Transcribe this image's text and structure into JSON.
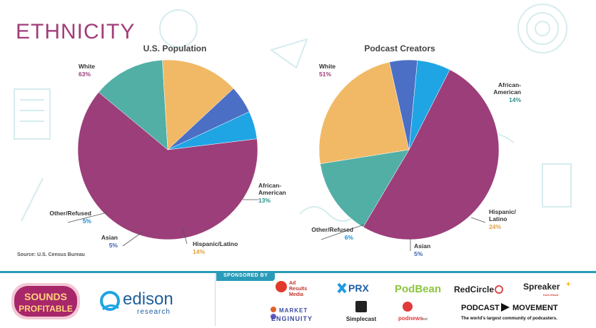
{
  "title": "ETHNICITY",
  "source": "Source: U.S. Census Bureau",
  "colors": {
    "white": "#9c3e7a",
    "african_american": "#52afa6",
    "hispanic_latino": "#f1b965",
    "asian": "#4b6fc5",
    "other_refused": "#1fa4e4",
    "title": "#a23d7a",
    "footer_accent": "#2a9bb8"
  },
  "chart_data": [
    {
      "type": "pie",
      "title": "U.S. Population",
      "slices": [
        {
          "label": "White",
          "value": 63
        },
        {
          "label": "African-American",
          "value": 13
        },
        {
          "label": "Hispanic/Latino",
          "value": 14
        },
        {
          "label": "Asian",
          "value": 5
        },
        {
          "label": "Other/Refused",
          "value": 5
        }
      ]
    },
    {
      "type": "pie",
      "title": "Podcast Creators",
      "slices": [
        {
          "label": "White",
          "value": 51
        },
        {
          "label": "African-American",
          "value": 14
        },
        {
          "label": "Hispanic/Latino",
          "value": 24
        },
        {
          "label": "Asian",
          "value": 5
        },
        {
          "label": "Other/Refused",
          "value": 6
        }
      ]
    }
  ],
  "footer": {
    "sponsored_label": "SPONSORED BY",
    "sounds_profitable": [
      "SOUNDS",
      "PROFITABLE"
    ],
    "edison": {
      "name": "edison",
      "sub": "research"
    },
    "sponsors": {
      "ad_results": [
        "Ad",
        "Results",
        "Media"
      ],
      "prx": "PRX",
      "podbean": "PodBean",
      "redcircle": "RedCircle",
      "spreaker": "Spreaker",
      "spreaker_sub": "from iHeart",
      "market_enginuity": [
        "MARKET",
        "ENGINUITY"
      ],
      "simplecast": "Simplecast",
      "podnews": "podnews",
      "podnews_suffix": ".net",
      "podcast_movement": [
        "PODCAST",
        "MOVEMENT"
      ],
      "podcast_movement_tagline": "The world's largest community of podcasters."
    }
  }
}
